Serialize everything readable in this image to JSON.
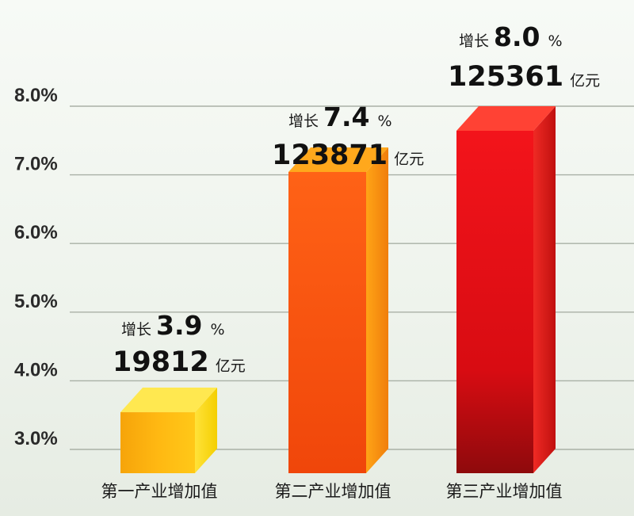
{
  "chart_data": {
    "type": "bar",
    "categories": [
      "第一产业增加值",
      "第二产业增加值",
      "第三产业增加值"
    ],
    "values": [
      3.9,
      7.4,
      8.0
    ],
    "amounts": [
      "19812",
      "123871",
      "125361"
    ],
    "growth_prefix": "增长",
    "growth_values": [
      "3.9",
      "7.4",
      "8.0"
    ],
    "percent_sign": "%",
    "amount_unit": "亿元",
    "y_ticks": [
      "3.0%",
      "4.0%",
      "5.0%",
      "6.0%",
      "7.0%",
      "8.0%"
    ],
    "ylim": [
      3.0,
      8.0
    ],
    "grid": true,
    "colors": {
      "bar1_front": "#ffcf1a",
      "bar1_side": "#e8b800",
      "bar1_top": "#ffe95a",
      "bar2_front": "#ff5a14",
      "bar2_side": "#f08a10",
      "bar2_top": "#ffa41c",
      "bar3_front": "#e8141c",
      "bar3_side": "#c40f16",
      "bar3_top": "#ff4a3a"
    }
  }
}
